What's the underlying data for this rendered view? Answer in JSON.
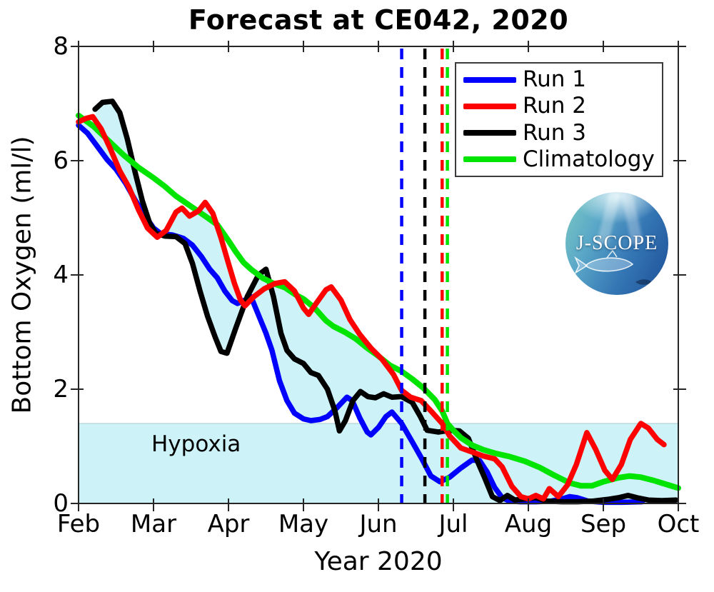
{
  "chart_data": {
    "type": "line",
    "title": "Forecast at CE042, 2020",
    "xlabel": "Year 2020",
    "ylabel": "Bottom Oxygen (ml/l)",
    "x_unit": "months since Feb 1 2020",
    "xlim": [
      0,
      8
    ],
    "ylim": [
      0,
      8
    ],
    "xticks": [
      0,
      1,
      2,
      3,
      4,
      5,
      6,
      7,
      8
    ],
    "xticklabels": [
      "Feb",
      "Mar",
      "Apr",
      "May",
      "Jun",
      "Jul",
      "Aug",
      "Sep",
      "Oct"
    ],
    "yticks": [
      0,
      2,
      4,
      6,
      8
    ],
    "grid": false,
    "legend_position": "upper right",
    "axis_color": "#262626",
    "hypoxia_band": {
      "label": "Hypoxia",
      "threshold_mll": 1.4,
      "fill_color": "#cdf3f9",
      "edge_color": "#a8c8cc"
    },
    "ensemble_envelope": {
      "description": "min-max spread of Run 1, Run 2, Run 3",
      "fill_color": "#cdf3f9"
    },
    "dashed_vlines": [
      {
        "color": "#0000ff",
        "x": 4.31
      },
      {
        "color": "#000000",
        "x": 4.62
      },
      {
        "color": "#ff0000",
        "x": 4.85
      },
      {
        "color": "#00e400",
        "x": 4.92
      }
    ],
    "series": [
      {
        "name": "Run 1",
        "color": "#0000ff",
        "width": 7.5,
        "points": [
          [
            0,
            6.62
          ],
          [
            0.12,
            6.48
          ],
          [
            0.25,
            6.25
          ],
          [
            0.38,
            6.02
          ],
          [
            0.5,
            5.85
          ],
          [
            0.63,
            5.6
          ],
          [
            0.75,
            5.32
          ],
          [
            0.88,
            5.05
          ],
          [
            1.0,
            4.82
          ],
          [
            1.1,
            4.72
          ],
          [
            1.25,
            4.7
          ],
          [
            1.4,
            4.64
          ],
          [
            1.52,
            4.52
          ],
          [
            1.64,
            4.32
          ],
          [
            1.75,
            4.1
          ],
          [
            1.85,
            3.95
          ],
          [
            1.95,
            3.72
          ],
          [
            2.05,
            3.55
          ],
          [
            2.12,
            3.5
          ],
          [
            2.22,
            3.56
          ],
          [
            2.3,
            3.62
          ],
          [
            2.4,
            3.3
          ],
          [
            2.5,
            2.98
          ],
          [
            2.58,
            2.68
          ],
          [
            2.68,
            2.15
          ],
          [
            2.78,
            1.8
          ],
          [
            2.88,
            1.58
          ],
          [
            3.0,
            1.48
          ],
          [
            3.1,
            1.45
          ],
          [
            3.22,
            1.47
          ],
          [
            3.32,
            1.52
          ],
          [
            3.45,
            1.68
          ],
          [
            3.58,
            1.86
          ],
          [
            3.65,
            1.8
          ],
          [
            3.75,
            1.5
          ],
          [
            3.85,
            1.25
          ],
          [
            3.9,
            1.2
          ],
          [
            4.0,
            1.33
          ],
          [
            4.1,
            1.52
          ],
          [
            4.18,
            1.6
          ],
          [
            4.31,
            1.4
          ],
          [
            4.45,
            1.08
          ],
          [
            4.58,
            0.78
          ],
          [
            4.7,
            0.48
          ],
          [
            4.82,
            0.38
          ],
          [
            4.95,
            0.46
          ],
          [
            5.1,
            0.62
          ],
          [
            5.25,
            0.76
          ],
          [
            5.35,
            0.75
          ],
          [
            5.45,
            0.55
          ],
          [
            5.55,
            0.28
          ],
          [
            5.65,
            0.1
          ],
          [
            5.75,
            0.04
          ],
          [
            5.9,
            0.03
          ],
          [
            6.1,
            0.03
          ],
          [
            6.3,
            0.04
          ],
          [
            6.45,
            0.08
          ],
          [
            6.55,
            0.12
          ],
          [
            6.65,
            0.1
          ],
          [
            6.8,
            0.04
          ],
          [
            7.0,
            0.02
          ],
          [
            7.25,
            0.02
          ],
          [
            7.52,
            0.03
          ]
        ]
      },
      {
        "name": "Run 2",
        "color": "#ff0000",
        "width": 7.5,
        "points": [
          [
            0,
            6.68
          ],
          [
            0.1,
            6.74
          ],
          [
            0.19,
            6.77
          ],
          [
            0.3,
            6.56
          ],
          [
            0.42,
            6.22
          ],
          [
            0.55,
            5.82
          ],
          [
            0.67,
            5.54
          ],
          [
            0.8,
            5.14
          ],
          [
            0.92,
            4.82
          ],
          [
            1.05,
            4.66
          ],
          [
            1.17,
            4.78
          ],
          [
            1.3,
            5.1
          ],
          [
            1.38,
            5.17
          ],
          [
            1.48,
            5.03
          ],
          [
            1.6,
            5.12
          ],
          [
            1.69,
            5.27
          ],
          [
            1.79,
            5.08
          ],
          [
            1.9,
            4.65
          ],
          [
            2.0,
            4.2
          ],
          [
            2.08,
            3.85
          ],
          [
            2.16,
            3.56
          ],
          [
            2.22,
            3.46
          ],
          [
            2.34,
            3.62
          ],
          [
            2.48,
            3.76
          ],
          [
            2.62,
            3.85
          ],
          [
            2.75,
            3.88
          ],
          [
            2.88,
            3.72
          ],
          [
            3.0,
            3.42
          ],
          [
            3.07,
            3.31
          ],
          [
            3.18,
            3.52
          ],
          [
            3.3,
            3.74
          ],
          [
            3.37,
            3.79
          ],
          [
            3.5,
            3.56
          ],
          [
            3.62,
            3.22
          ],
          [
            3.75,
            2.96
          ],
          [
            3.9,
            2.72
          ],
          [
            4.05,
            2.52
          ],
          [
            4.2,
            2.26
          ],
          [
            4.31,
            1.98
          ],
          [
            4.43,
            1.86
          ],
          [
            4.57,
            1.8
          ],
          [
            4.7,
            1.62
          ],
          [
            4.85,
            1.4
          ],
          [
            4.95,
            1.18
          ],
          [
            5.1,
            0.97
          ],
          [
            5.25,
            0.9
          ],
          [
            5.4,
            0.83
          ],
          [
            5.55,
            0.78
          ],
          [
            5.65,
            0.64
          ],
          [
            5.78,
            0.3
          ],
          [
            5.9,
            0.12
          ],
          [
            6.0,
            0.08
          ],
          [
            6.1,
            0.14
          ],
          [
            6.2,
            0.08
          ],
          [
            6.28,
            0.26
          ],
          [
            6.4,
            0.12
          ],
          [
            6.52,
            0.32
          ],
          [
            6.64,
            0.68
          ],
          [
            6.78,
            1.24
          ],
          [
            6.9,
            0.94
          ],
          [
            7.02,
            0.58
          ],
          [
            7.12,
            0.42
          ],
          [
            7.24,
            0.68
          ],
          [
            7.36,
            1.12
          ],
          [
            7.5,
            1.4
          ],
          [
            7.6,
            1.32
          ],
          [
            7.72,
            1.12
          ],
          [
            7.81,
            1.03
          ]
        ]
      },
      {
        "name": "Run 3",
        "color": "#000000",
        "width": 7.5,
        "points": [
          [
            0.22,
            6.9
          ],
          [
            0.32,
            7.02
          ],
          [
            0.45,
            7.04
          ],
          [
            0.55,
            6.84
          ],
          [
            0.65,
            6.38
          ],
          [
            0.75,
            5.82
          ],
          [
            0.85,
            5.3
          ],
          [
            0.95,
            4.9
          ],
          [
            1.03,
            4.73
          ],
          [
            1.15,
            4.68
          ],
          [
            1.3,
            4.67
          ],
          [
            1.42,
            4.55
          ],
          [
            1.52,
            4.2
          ],
          [
            1.62,
            3.72
          ],
          [
            1.72,
            3.28
          ],
          [
            1.82,
            2.92
          ],
          [
            1.9,
            2.66
          ],
          [
            1.98,
            2.63
          ],
          [
            2.1,
            3.08
          ],
          [
            2.25,
            3.62
          ],
          [
            2.4,
            4.0
          ],
          [
            2.5,
            4.1
          ],
          [
            2.6,
            3.62
          ],
          [
            2.7,
            2.98
          ],
          [
            2.78,
            2.68
          ],
          [
            2.88,
            2.53
          ],
          [
            3.0,
            2.45
          ],
          [
            3.1,
            2.29
          ],
          [
            3.2,
            2.24
          ],
          [
            3.32,
            2.0
          ],
          [
            3.42,
            1.62
          ],
          [
            3.48,
            1.27
          ],
          [
            3.56,
            1.45
          ],
          [
            3.66,
            1.8
          ],
          [
            3.76,
            1.96
          ],
          [
            3.86,
            1.87
          ],
          [
            3.96,
            1.85
          ],
          [
            4.07,
            1.92
          ],
          [
            4.18,
            1.86
          ],
          [
            4.31,
            1.87
          ],
          [
            4.45,
            1.77
          ],
          [
            4.56,
            1.52
          ],
          [
            4.65,
            1.28
          ],
          [
            4.8,
            1.25
          ],
          [
            4.95,
            1.28
          ],
          [
            5.08,
            1.27
          ],
          [
            5.2,
            1.14
          ],
          [
            5.32,
            0.74
          ],
          [
            5.42,
            0.44
          ],
          [
            5.52,
            0.12
          ],
          [
            5.62,
            0.05
          ],
          [
            5.72,
            0.14
          ],
          [
            5.82,
            0.06
          ],
          [
            5.95,
            0.08
          ],
          [
            6.1,
            0.1
          ],
          [
            6.25,
            0.04
          ],
          [
            6.45,
            0.03
          ],
          [
            6.65,
            0.03
          ],
          [
            6.85,
            0.04
          ],
          [
            7.05,
            0.07
          ],
          [
            7.2,
            0.1
          ],
          [
            7.33,
            0.14
          ],
          [
            7.45,
            0.1
          ],
          [
            7.6,
            0.06
          ],
          [
            7.78,
            0.05
          ],
          [
            7.97,
            0.06
          ]
        ]
      },
      {
        "name": "Climatology",
        "color": "#00e400",
        "width": 8,
        "points": [
          [
            0,
            6.79
          ],
          [
            0.2,
            6.6
          ],
          [
            0.4,
            6.35
          ],
          [
            0.6,
            6.1
          ],
          [
            0.8,
            5.88
          ],
          [
            1.0,
            5.7
          ],
          [
            1.15,
            5.55
          ],
          [
            1.3,
            5.38
          ],
          [
            1.5,
            5.2
          ],
          [
            1.7,
            5.02
          ],
          [
            1.85,
            4.88
          ],
          [
            2.0,
            4.6
          ],
          [
            2.1,
            4.4
          ],
          [
            2.2,
            4.22
          ],
          [
            2.3,
            4.1
          ],
          [
            2.45,
            3.95
          ],
          [
            2.6,
            3.85
          ],
          [
            2.75,
            3.78
          ],
          [
            2.9,
            3.65
          ],
          [
            3.0,
            3.58
          ],
          [
            3.15,
            3.42
          ],
          [
            3.3,
            3.2
          ],
          [
            3.4,
            3.1
          ],
          [
            3.55,
            3.0
          ],
          [
            3.7,
            2.88
          ],
          [
            3.85,
            2.72
          ],
          [
            4.0,
            2.58
          ],
          [
            4.15,
            2.42
          ],
          [
            4.3,
            2.32
          ],
          [
            4.45,
            2.18
          ],
          [
            4.6,
            2.02
          ],
          [
            4.75,
            1.82
          ],
          [
            4.85,
            1.62
          ],
          [
            4.92,
            1.4
          ],
          [
            5.0,
            1.28
          ],
          [
            5.1,
            1.15
          ],
          [
            5.25,
            1.02
          ],
          [
            5.4,
            0.94
          ],
          [
            5.55,
            0.88
          ],
          [
            5.75,
            0.82
          ],
          [
            5.95,
            0.74
          ],
          [
            6.15,
            0.63
          ],
          [
            6.35,
            0.49
          ],
          [
            6.55,
            0.36
          ],
          [
            6.7,
            0.31
          ],
          [
            6.85,
            0.31
          ],
          [
            7.0,
            0.38
          ],
          [
            7.2,
            0.45
          ],
          [
            7.35,
            0.48
          ],
          [
            7.5,
            0.46
          ],
          [
            7.65,
            0.41
          ],
          [
            7.8,
            0.35
          ],
          [
            8.0,
            0.27
          ]
        ]
      }
    ]
  },
  "logo": {
    "text": "J-SCOPE"
  }
}
